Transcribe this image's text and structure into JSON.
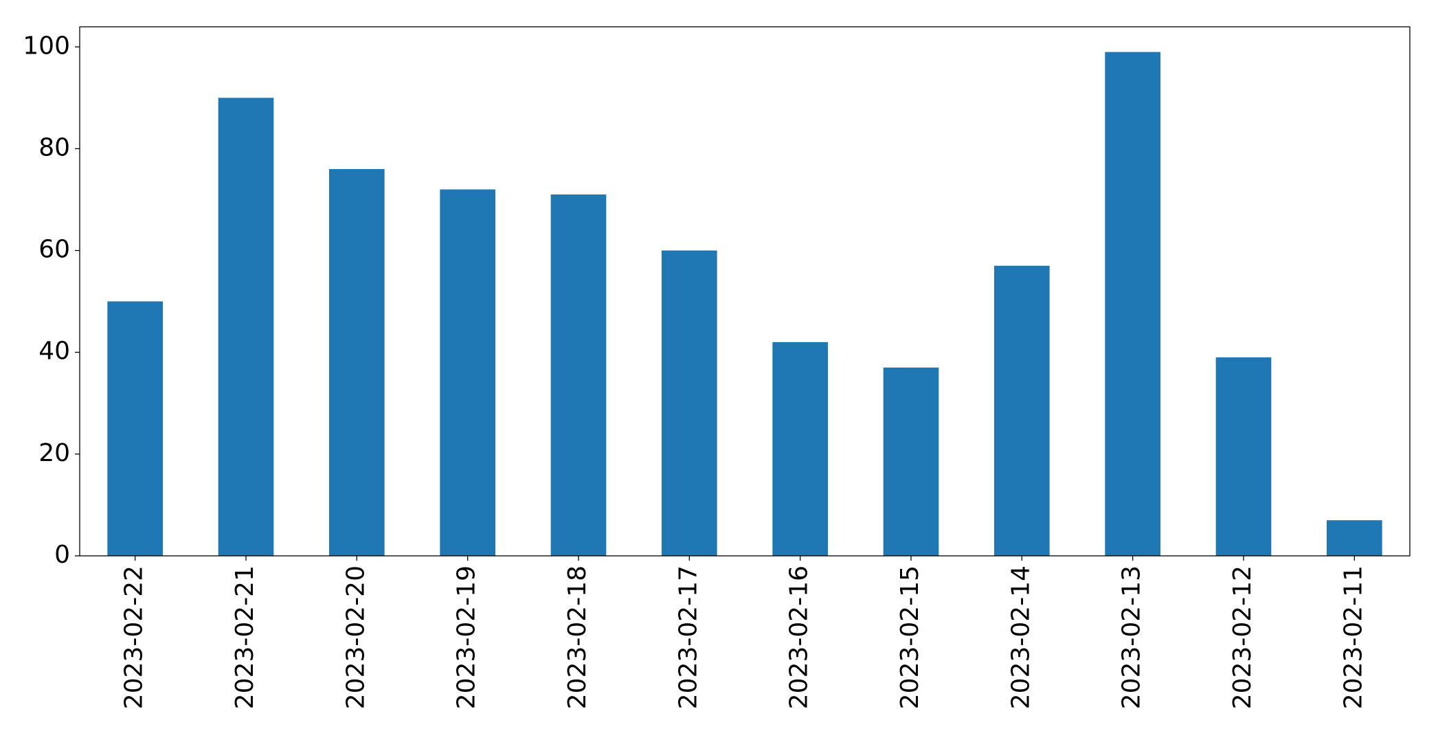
{
  "chart_data": {
    "type": "bar",
    "categories": [
      "2023-02-22",
      "2023-02-21",
      "2023-02-20",
      "2023-02-19",
      "2023-02-18",
      "2023-02-17",
      "2023-02-16",
      "2023-02-15",
      "2023-02-14",
      "2023-02-13",
      "2023-02-12",
      "2023-02-11"
    ],
    "values": [
      50,
      90,
      76,
      72,
      71,
      60,
      42,
      37,
      57,
      99,
      39,
      7
    ],
    "color": "#1f77b4",
    "ylim": [
      0,
      103.95
    ],
    "yticks": [
      0,
      20,
      40,
      60,
      80,
      100
    ],
    "grid": false
  }
}
